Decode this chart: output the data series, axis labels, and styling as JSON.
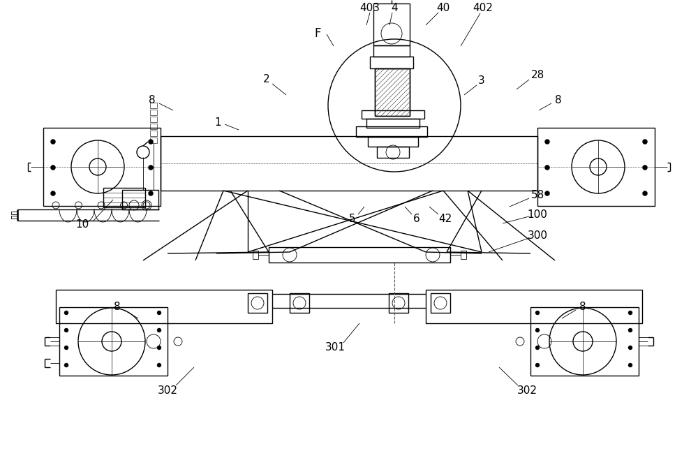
{
  "bg_color": "#ffffff",
  "line_color": "#000000",
  "lw": 1.0,
  "tlw": 0.6,
  "thk": 1.8,
  "fig_w": 10.0,
  "fig_h": 6.56,
  "dpi": 100
}
